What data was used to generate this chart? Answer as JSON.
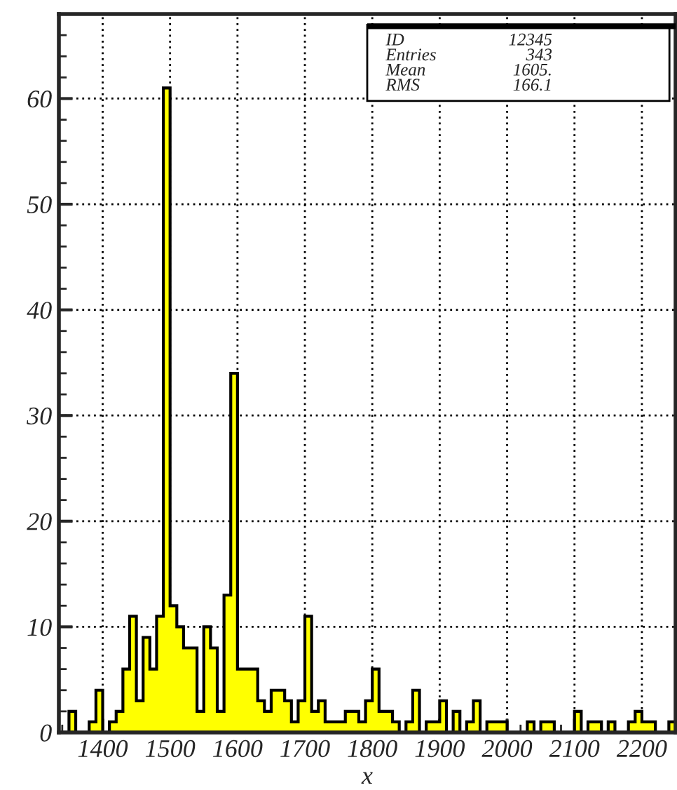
{
  "chart_data": {
    "type": "histogram",
    "xlabel": "x",
    "bins": [
      1340,
      1350,
      1360,
      1370,
      1380,
      1390,
      1400,
      1410,
      1420,
      1430,
      1440,
      1450,
      1460,
      1470,
      1480,
      1490,
      1500,
      1510,
      1520,
      1530,
      1540,
      1550,
      1560,
      1570,
      1580,
      1590,
      1600,
      1610,
      1620,
      1630,
      1640,
      1650,
      1660,
      1670,
      1680,
      1690,
      1700,
      1710,
      1720,
      1730,
      1740,
      1750,
      1760,
      1770,
      1780,
      1790,
      1800,
      1810,
      1820,
      1830,
      1840,
      1850,
      1860,
      1870,
      1880,
      1890,
      1900,
      1910,
      1920,
      1930,
      1940,
      1950,
      1960,
      1970,
      1980,
      1990,
      2000,
      2010,
      2020,
      2030,
      2040,
      2050,
      2060,
      2070,
      2080,
      2090,
      2100,
      2110,
      2120,
      2130,
      2140,
      2150,
      2160,
      2170,
      2180,
      2190,
      2200,
      2210,
      2220,
      2230,
      2240,
      2250
    ],
    "values": [
      0,
      2,
      0,
      0,
      1,
      4,
      0,
      1,
      2,
      6,
      11,
      3,
      9,
      6,
      11,
      61,
      12,
      10,
      8,
      8,
      2,
      10,
      8,
      2,
      13,
      34,
      6,
      6,
      6,
      3,
      2,
      4,
      4,
      3,
      1,
      3,
      11,
      2,
      3,
      1,
      1,
      1,
      2,
      2,
      1,
      3,
      6,
      2,
      2,
      1,
      0,
      1,
      4,
      0,
      1,
      1,
      3,
      0,
      2,
      0,
      1,
      3,
      0,
      1,
      1,
      1,
      0,
      0,
      0,
      1,
      0,
      1,
      1,
      0,
      0,
      0,
      2,
      0,
      1,
      1,
      0,
      1,
      0,
      0,
      1,
      2,
      1,
      1,
      0,
      0,
      1
    ],
    "color": "#ffff00",
    "xlim": [
      1335,
      2250
    ],
    "ylim": [
      0,
      68
    ],
    "xticks": [
      1400,
      1500,
      1600,
      1700,
      1800,
      1900,
      2000,
      2100,
      2200
    ],
    "yticks": [
      0,
      10,
      20,
      30,
      40,
      50,
      60
    ],
    "grid": true,
    "annotations": [
      "ID",
      "12345",
      "Entries",
      "343",
      "Mean",
      "1605.",
      "RMS",
      "166.1"
    ]
  }
}
